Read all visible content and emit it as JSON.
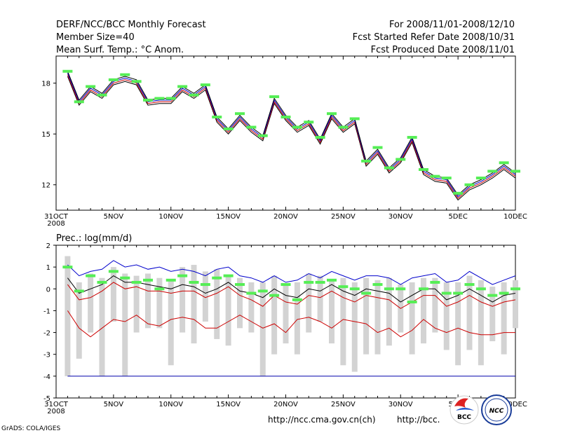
{
  "header": {
    "title_left": "DERF/NCC/BCC Monthly Forecast",
    "member_size": "Member Size=40",
    "variable_label": "Mean Surf. Temp.: °C Anom.",
    "title_right": "For 2008/11/01-2008/12/10",
    "fcst_started": "Fcst Started Refer Date 2008/10/31",
    "fcst_produced": "Fcst Produced Date 2008/11/01"
  },
  "footer": {
    "credit": "GrADS: COLA/IGES",
    "url_ncc": "http://ncc.cma.gov.cn(ch)",
    "url_bcc": "http://bcc.",
    "logo_bcc": "BCC",
    "logo_ncc": "NCC"
  },
  "colors": {
    "obs_marker": "#55ee55",
    "upper_bound": "#0000cc",
    "ensemble_mean": "#000000",
    "inner_band": "#cc0000",
    "box": "#d3d3d3",
    "baseline": "#0000aa"
  },
  "chart_data": [
    {
      "type": "line",
      "title": "Mean Surf. Temp.: °C Anom.",
      "x_tick_labels": [
        "31OCT",
        "5NOV",
        "10NOV",
        "15NOV",
        "20NOV",
        "25NOV",
        "30NOV",
        "5DEC",
        "10DEC"
      ],
      "x_sub_label": "2008",
      "x_range": [
        0,
        40
      ],
      "ylim": [
        10.5,
        19.6
      ],
      "y_ticks": [
        12,
        15,
        18
      ],
      "x": [
        1,
        2,
        3,
        4,
        5,
        6,
        7,
        8,
        9,
        10,
        11,
        12,
        13,
        14,
        15,
        16,
        17,
        18,
        19,
        20,
        21,
        22,
        23,
        24,
        25,
        26,
        27,
        28,
        29,
        30,
        31,
        32,
        33,
        34,
        35,
        36,
        37,
        38,
        39,
        40
      ],
      "series": [
        {
          "name": "ensemble_lower",
          "color": "#000000",
          "values": [
            18.4,
            16.7,
            17.5,
            17.1,
            17.9,
            18.1,
            17.9,
            16.7,
            16.8,
            16.8,
            17.5,
            17.1,
            17.6,
            15.7,
            15.0,
            15.8,
            15.1,
            14.6,
            16.8,
            15.8,
            15.1,
            15.5,
            14.4,
            15.9,
            15.1,
            15.6,
            13.1,
            13.8,
            12.7,
            13.3,
            14.5,
            12.6,
            12.2,
            12.1,
            11.1,
            11.7,
            12.0,
            12.4,
            12.9,
            12.4
          ]
        },
        {
          "name": "ensemble_mid_red",
          "color": "#cc0000",
          "values": [
            18.5,
            16.8,
            17.6,
            17.2,
            18.0,
            18.2,
            18.0,
            16.8,
            16.9,
            16.9,
            17.6,
            17.2,
            17.7,
            15.8,
            15.1,
            15.9,
            15.2,
            14.7,
            16.9,
            15.9,
            15.2,
            15.6,
            14.5,
            16.0,
            15.2,
            15.7,
            13.2,
            13.9,
            12.8,
            13.4,
            14.6,
            12.7,
            12.3,
            12.2,
            11.2,
            11.8,
            12.1,
            12.5,
            13.0,
            12.5
          ]
        },
        {
          "name": "ensemble_mid_blue",
          "color": "#0000cc",
          "values": [
            18.6,
            16.9,
            17.7,
            17.3,
            18.1,
            18.3,
            18.1,
            16.9,
            17.0,
            17.0,
            17.7,
            17.3,
            17.8,
            15.9,
            15.2,
            16.0,
            15.3,
            14.8,
            17.0,
            16.0,
            15.3,
            15.7,
            14.6,
            16.1,
            15.3,
            15.8,
            13.3,
            14.0,
            12.9,
            13.5,
            14.7,
            12.8,
            12.4,
            12.3,
            11.3,
            11.9,
            12.2,
            12.6,
            13.1,
            12.6
          ]
        },
        {
          "name": "ensemble_upper",
          "color": "#000000",
          "values": [
            18.7,
            17.0,
            17.8,
            17.4,
            18.2,
            18.4,
            18.2,
            17.0,
            17.1,
            17.1,
            17.8,
            17.4,
            17.9,
            16.0,
            15.3,
            16.1,
            15.4,
            14.9,
            17.1,
            16.1,
            15.4,
            15.8,
            14.7,
            16.2,
            15.4,
            15.9,
            13.4,
            14.1,
            13.0,
            13.6,
            14.8,
            12.9,
            12.5,
            12.4,
            11.4,
            12.0,
            12.3,
            12.7,
            13.2,
            12.7
          ]
        }
      ],
      "observed_markers": [
        18.7,
        16.9,
        17.8,
        17.3,
        18.2,
        18.5,
        18.1,
        17.0,
        17.1,
        17.1,
        17.8,
        17.3,
        17.9,
        16.0,
        15.3,
        16.2,
        15.4,
        14.9,
        17.2,
        16.0,
        15.4,
        15.7,
        14.8,
        16.2,
        15.4,
        15.9,
        13.4,
        14.2,
        13.0,
        13.5,
        14.8,
        12.9,
        12.5,
        12.4,
        11.5,
        12.0,
        12.4,
        12.8,
        13.3,
        12.8
      ]
    },
    {
      "type": "line",
      "title": "Prec.: log(mm/d)",
      "x_tick_labels": [
        "31OCT",
        "5NOV",
        "10NOV",
        "15NOV",
        "20NOV",
        "25NOV",
        "30NOV",
        "5DEC",
        "10DEC"
      ],
      "x_sub_label": "2008",
      "x_range": [
        0,
        40
      ],
      "ylim": [
        -5,
        2
      ],
      "y_ticks": [
        -5,
        -4,
        -3,
        -2,
        -1,
        0,
        1,
        2
      ],
      "x": [
        1,
        2,
        3,
        4,
        5,
        6,
        7,
        8,
        9,
        10,
        11,
        12,
        13,
        14,
        15,
        16,
        17,
        18,
        19,
        20,
        21,
        22,
        23,
        24,
        25,
        26,
        27,
        28,
        29,
        30,
        31,
        32,
        33,
        34,
        35,
        36,
        37,
        38,
        39,
        40
      ],
      "series": [
        {
          "name": "max",
          "color": "#0000cc",
          "values": [
            1.1,
            0.6,
            0.8,
            0.9,
            1.3,
            1.0,
            1.1,
            0.9,
            1.0,
            0.8,
            0.9,
            0.8,
            0.6,
            0.9,
            1.0,
            0.6,
            0.5,
            0.3,
            0.6,
            0.3,
            0.4,
            0.7,
            0.5,
            0.8,
            0.6,
            0.4,
            0.6,
            0.6,
            0.5,
            0.2,
            0.5,
            0.6,
            0.7,
            0.3,
            0.4,
            0.8,
            0.5,
            0.2,
            0.4,
            0.6
          ]
        },
        {
          "name": "upper_red",
          "color": "#cc0000",
          "values": [
            0.2,
            -0.5,
            -0.4,
            -0.1,
            0.3,
            0.0,
            0.1,
            -0.1,
            -0.1,
            -0.2,
            -0.1,
            -0.1,
            -0.4,
            -0.2,
            0.1,
            -0.3,
            -0.5,
            -0.8,
            -0.3,
            -0.6,
            -0.7,
            -0.3,
            -0.4,
            -0.1,
            -0.4,
            -0.6,
            -0.3,
            -0.4,
            -0.5,
            -0.9,
            -0.6,
            -0.3,
            -0.3,
            -0.8,
            -0.6,
            -0.3,
            -0.6,
            -0.8,
            -0.6,
            -0.5
          ]
        },
        {
          "name": "mean",
          "color": "#000000",
          "values": [
            0.5,
            -0.2,
            0.0,
            0.2,
            0.6,
            0.3,
            0.3,
            0.2,
            0.1,
            0.0,
            0.2,
            0.1,
            -0.2,
            0.0,
            0.3,
            -0.1,
            -0.2,
            -0.4,
            0.0,
            -0.3,
            -0.4,
            0.0,
            -0.1,
            0.2,
            -0.1,
            -0.3,
            0.0,
            -0.1,
            -0.2,
            -0.6,
            -0.3,
            0.0,
            0.0,
            -0.5,
            -0.3,
            0.0,
            -0.3,
            -0.6,
            -0.3,
            -0.2
          ]
        },
        {
          "name": "lower_red",
          "color": "#cc0000",
          "values": [
            -1.0,
            -1.8,
            -2.2,
            -1.8,
            -1.4,
            -1.5,
            -1.2,
            -1.6,
            -1.7,
            -1.4,
            -1.3,
            -1.4,
            -1.8,
            -1.8,
            -1.5,
            -1.2,
            -1.5,
            -1.8,
            -1.6,
            -2.0,
            -1.4,
            -1.3,
            -1.5,
            -1.8,
            -1.4,
            -1.5,
            -1.6,
            -2.0,
            -1.8,
            -2.2,
            -1.9,
            -1.4,
            -1.8,
            -2.0,
            -1.8,
            -2.0,
            -2.1,
            -2.1,
            -2.0,
            -2.0
          ]
        },
        {
          "name": "min",
          "color": "#0000aa",
          "values": [
            -4,
            -4,
            -4,
            -4,
            -4,
            -4,
            -4,
            -4,
            -4,
            -4,
            -4,
            -4,
            -4,
            -4,
            -4,
            -4,
            -4,
            -4,
            -4,
            -4,
            -4,
            -4,
            -4,
            -4,
            -4,
            -4,
            -4,
            -4,
            -4,
            -4,
            -4,
            -4,
            -4,
            -4,
            -4,
            -4,
            -4,
            -4,
            -4,
            -4
          ]
        }
      ],
      "box_low": [
        -4.0,
        -3.2,
        -2.0,
        -4.0,
        -1.5,
        -4.0,
        -2.0,
        -1.8,
        -1.8,
        -3.5,
        -2.0,
        -2.5,
        -1.5,
        -2.3,
        -2.6,
        -1.8,
        -2.0,
        -4.0,
        -3.0,
        -2.5,
        -3.0,
        -2.0,
        -1.5,
        -2.5,
        -3.5,
        -3.8,
        -3.0,
        -3.0,
        -2.6,
        -2.0,
        -3.0,
        -2.5,
        -2.0,
        -2.8,
        -3.5,
        -2.8,
        -3.5,
        -2.4,
        -3.0,
        -1.8
      ],
      "box_high": [
        1.5,
        0.3,
        0.7,
        0.5,
        1.0,
        0.7,
        0.6,
        0.7,
        0.5,
        0.4,
        1.0,
        1.1,
        0.8,
        0.9,
        0.6,
        0.5,
        0.3,
        0.3,
        0.6,
        0.2,
        0.3,
        0.7,
        0.6,
        0.4,
        0.5,
        0.3,
        0.5,
        0.4,
        0.5,
        0.2,
        0.3,
        0.5,
        0.5,
        0.3,
        0.3,
        0.6,
        0.4,
        0.1,
        0.3,
        0.4
      ],
      "observed_markers": [
        1.0,
        -0.1,
        0.6,
        0.3,
        0.8,
        0.5,
        0.3,
        0.4,
        0.0,
        0.4,
        0.6,
        0.3,
        0.2,
        0.5,
        0.6,
        0.2,
        -0.2,
        -0.1,
        -0.3,
        0.2,
        -0.5,
        0.3,
        0.3,
        0.4,
        0.1,
        0.0,
        -0.2,
        0.2,
        0.0,
        0.0,
        -0.6,
        0.0,
        0.3,
        -0.2,
        -0.2,
        0.2,
        0.0,
        -0.3,
        -0.2,
        0.0
      ]
    }
  ]
}
